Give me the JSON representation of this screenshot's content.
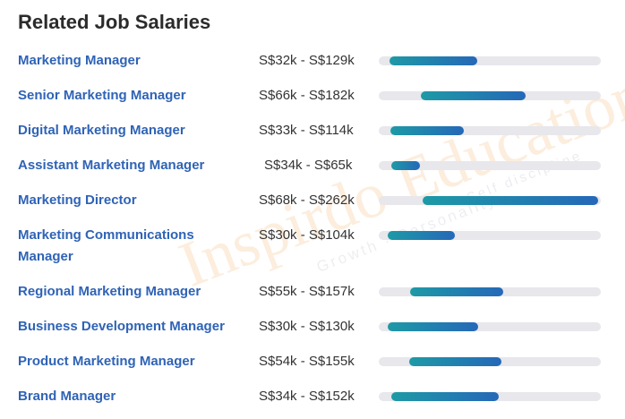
{
  "title": "Related Job Salaries",
  "accent_colors": {
    "link": "#2f63b6",
    "bar_start": "#1e9aa6",
    "bar_end": "#2568b8",
    "track": "#e7e7ec"
  },
  "watermark": {
    "main": "Inspirdo Education",
    "sub1": "Growth · Personality",
    "sub2": "Self discipline"
  },
  "scale": {
    "min": 20,
    "max": 265
  },
  "jobs": [
    {
      "title": "Marketing Manager",
      "range": "S$32k - S$129k",
      "low": 32,
      "high": 129
    },
    {
      "title": "Senior Marketing Manager",
      "range": "S$66k - S$182k",
      "low": 66,
      "high": 182
    },
    {
      "title": "Digital Marketing Manager",
      "range": "S$33k - S$114k",
      "low": 33,
      "high": 114
    },
    {
      "title": "Assistant Marketing Manager",
      "range": "S$34k - S$65k",
      "low": 34,
      "high": 65
    },
    {
      "title": "Marketing Director",
      "range": "S$68k - S$262k",
      "low": 68,
      "high": 262
    },
    {
      "title": "Marketing Communications Manager",
      "range": "S$30k - S$104k",
      "low": 30,
      "high": 104
    },
    {
      "title": "Regional Marketing Manager",
      "range": "S$55k - S$157k",
      "low": 55,
      "high": 157
    },
    {
      "title": "Business Development Manager",
      "range": "S$30k - S$130k",
      "low": 30,
      "high": 130
    },
    {
      "title": "Product Marketing Manager",
      "range": "S$54k - S$155k",
      "low": 54,
      "high": 155
    },
    {
      "title": "Brand Manager",
      "range": "S$34k - S$152k",
      "low": 34,
      "high": 152
    }
  ]
}
